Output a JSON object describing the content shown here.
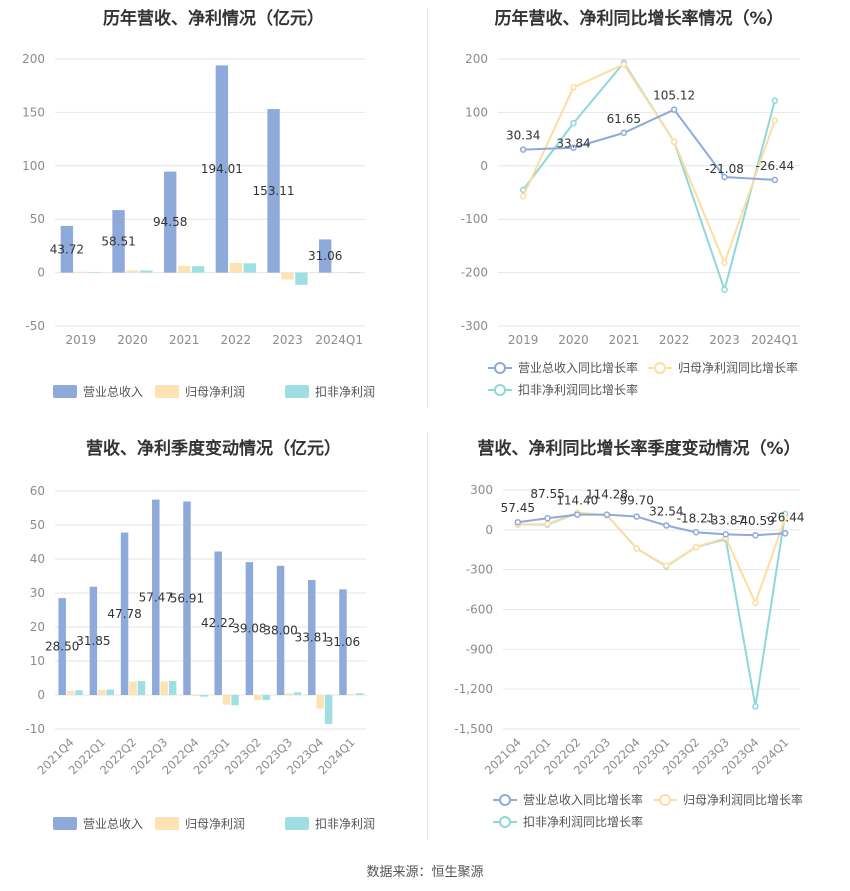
{
  "source": "数据来源：恒生聚源",
  "colors": {
    "revenue": "#8eaadb",
    "net_profit": "#fde3b4",
    "deducted": "#9fdfe3",
    "line_revenue": "#8eaadb",
    "line_net": "#fddda0",
    "line_deducted": "#8ed8dc",
    "grid": "#e6e6e6",
    "axis_text": "#8c8c8c"
  },
  "chart_data": [
    {
      "id": "annual_amounts",
      "type": "bar",
      "title": "历年营收、净利情况（亿元）",
      "categories": [
        "2019",
        "2020",
        "2021",
        "2022",
        "2023",
        "2024Q1"
      ],
      "ylim": [
        -50,
        200
      ],
      "yticks": [
        -50,
        0,
        50,
        100,
        150,
        200
      ],
      "grid": true,
      "legend_position": "bottom",
      "series": [
        {
          "name": "营业总收入",
          "values": [
            43.72,
            58.51,
            94.58,
            194.01,
            153.11,
            31.06
          ],
          "labels": [
            "43.72",
            "58.51",
            "94.58",
            "194.01",
            "153.11",
            "31.06"
          ]
        },
        {
          "name": "归母净利润",
          "values": [
            0.8,
            2.2,
            6.3,
            9.0,
            -6.5,
            0.3
          ]
        },
        {
          "name": "扣非净利润",
          "values": [
            0.6,
            2.0,
            6.0,
            8.7,
            -11.5,
            0.2
          ]
        }
      ]
    },
    {
      "id": "annual_growth",
      "type": "line",
      "title": "历年营收、净利同比增长率情况（%）",
      "categories": [
        "2019",
        "2020",
        "2021",
        "2022",
        "2023",
        "2024Q1"
      ],
      "ylim": [
        -300,
        200
      ],
      "yticks": [
        -300,
        -200,
        -100,
        0,
        100,
        200
      ],
      "grid": true,
      "legend_position": "bottom",
      "series": [
        {
          "name": "营业总收入同比增长率",
          "values": [
            30.34,
            33.84,
            61.65,
            105.12,
            -21.08,
            -26.44
          ],
          "labels": [
            "30.34",
            "33.84",
            "61.65",
            "105.12",
            "-21.08",
            "-26.44"
          ]
        },
        {
          "name": "归母净利润同比增长率",
          "values": [
            -57,
            147,
            190,
            45,
            -182,
            85
          ]
        },
        {
          "name": "扣非净利润同比增长率",
          "values": [
            -45,
            80,
            193,
            45,
            -232,
            122
          ]
        }
      ]
    },
    {
      "id": "quarterly_amounts",
      "type": "bar",
      "title": "营收、净利季度变动情况（亿元）",
      "categories": [
        "2021Q4",
        "2022Q1",
        "2022Q2",
        "2022Q3",
        "2022Q4",
        "2023Q1",
        "2023Q2",
        "2023Q3",
        "2023Q4",
        "2024Q1"
      ],
      "ylim": [
        -10,
        60
      ],
      "yticks": [
        -10,
        0,
        10,
        20,
        30,
        40,
        50,
        60
      ],
      "grid": true,
      "legend_position": "bottom",
      "series": [
        {
          "name": "营业总收入",
          "values": [
            28.5,
            31.85,
            47.78,
            57.47,
            56.91,
            42.22,
            39.08,
            38.0,
            33.81,
            31.06
          ],
          "labels": [
            "28.50",
            "31.85",
            "47.78",
            "57.47",
            "56.91",
            "42.22",
            "39.08",
            "38.00",
            "33.81",
            "31.06"
          ]
        },
        {
          "name": "归母净利润",
          "values": [
            1.2,
            1.5,
            4.0,
            4.0,
            -0.3,
            -2.8,
            -1.5,
            0.5,
            -4.0,
            0.3
          ]
        },
        {
          "name": "扣非净利润",
          "values": [
            1.4,
            1.6,
            4.1,
            4.1,
            -0.5,
            -3.0,
            -1.5,
            0.8,
            -8.5,
            0.5
          ]
        }
      ]
    },
    {
      "id": "quarterly_growth",
      "type": "line",
      "title": "营收、净利同比增长率季度变动情况（%）",
      "categories": [
        "2021Q4",
        "2022Q1",
        "2022Q2",
        "2022Q3",
        "2022Q4",
        "2023Q1",
        "2023Q2",
        "2023Q3",
        "2023Q4",
        "2024Q1"
      ],
      "ylim": [
        -1500,
        300
      ],
      "yticks": [
        -1500,
        -1200,
        -900,
        -600,
        -300,
        0,
        300
      ],
      "grid": true,
      "legend_position": "bottom",
      "series": [
        {
          "name": "营业总收入同比增长率",
          "values": [
            57.45,
            87.55,
            114.4,
            114.28,
            99.7,
            32.54,
            -18.21,
            -33.87,
            -40.59,
            -26.44
          ],
          "labels": [
            "57.45",
            "87.55",
            "114.40",
            "114.28",
            "99.70",
            "32.54",
            "-18.21",
            "-33.87",
            "-40.59",
            "-26.44"
          ]
        },
        {
          "name": "归母净利润同比增长率",
          "values": [
            40,
            45,
            130,
            110,
            -140,
            -270,
            -130,
            -60,
            -550,
            90
          ]
        },
        {
          "name": "扣非净利润同比增长率",
          "values": [
            40,
            40,
            125,
            110,
            -140,
            -275,
            -130,
            -70,
            -1330,
            120
          ]
        }
      ]
    }
  ]
}
